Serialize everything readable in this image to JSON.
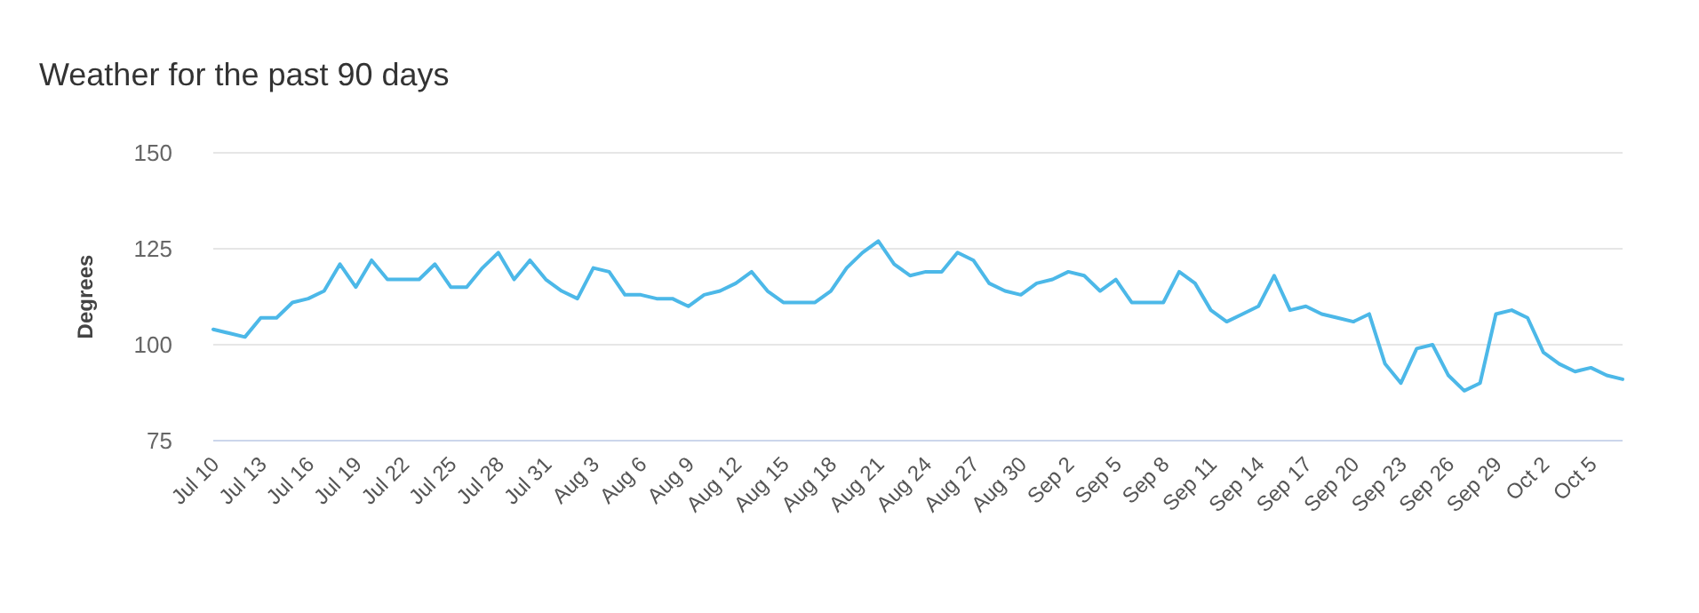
{
  "chart_data": {
    "type": "line",
    "title": "Weather for the past 90 days",
    "ylabel": "Degrees",
    "categories": [
      "Jul 10",
      null,
      null,
      "Jul 13",
      null,
      null,
      "Jul 16",
      null,
      null,
      "Jul 19",
      null,
      null,
      "Jul 22",
      null,
      null,
      "Jul 25",
      null,
      null,
      "Jul 28",
      null,
      null,
      "Jul 31",
      null,
      null,
      "Aug 3",
      null,
      null,
      "Aug 6",
      null,
      null,
      "Aug 9",
      null,
      null,
      "Aug 12",
      null,
      null,
      "Aug 15",
      null,
      null,
      "Aug 18",
      null,
      null,
      "Aug 21",
      null,
      null,
      "Aug 24",
      null,
      null,
      "Aug 27",
      null,
      null,
      "Aug 30",
      null,
      null,
      "Sep 2",
      null,
      null,
      "Sep 5",
      null,
      null,
      "Sep 8",
      null,
      null,
      "Sep 11",
      null,
      null,
      "Sep 14",
      null,
      null,
      "Sep 17",
      null,
      null,
      "Sep 20",
      null,
      null,
      "Sep 23",
      null,
      null,
      "Sep 26",
      null,
      null,
      "Sep 29",
      null,
      null,
      "Oct 2",
      null,
      null,
      "Oct 5",
      null,
      null
    ],
    "series": [
      {
        "color": "#4cb8e8",
        "values": [
          104,
          103,
          102,
          107,
          107,
          111,
          112,
          114,
          121,
          115,
          122,
          117,
          117,
          117,
          121,
          115,
          115,
          120,
          124,
          117,
          122,
          117,
          114,
          112,
          120,
          119,
          113,
          113,
          112,
          112,
          110,
          113,
          114,
          116,
          119,
          114,
          111,
          111,
          111,
          114,
          120,
          124,
          127,
          121,
          118,
          119,
          119,
          124,
          122,
          116,
          114,
          113,
          116,
          117,
          119,
          118,
          114,
          117,
          111,
          111,
          111,
          119,
          116,
          109,
          106,
          108,
          110,
          118,
          109,
          110,
          108,
          107,
          106,
          108,
          95,
          90,
          99,
          100,
          92,
          88,
          90,
          108,
          109,
          107,
          98,
          95,
          93,
          94,
          92,
          91
        ]
      }
    ],
    "ylim": [
      75,
      150
    ],
    "yticks": [
      75,
      100,
      125,
      150
    ],
    "grid": "y",
    "marker": "none",
    "line_style": "solid"
  }
}
